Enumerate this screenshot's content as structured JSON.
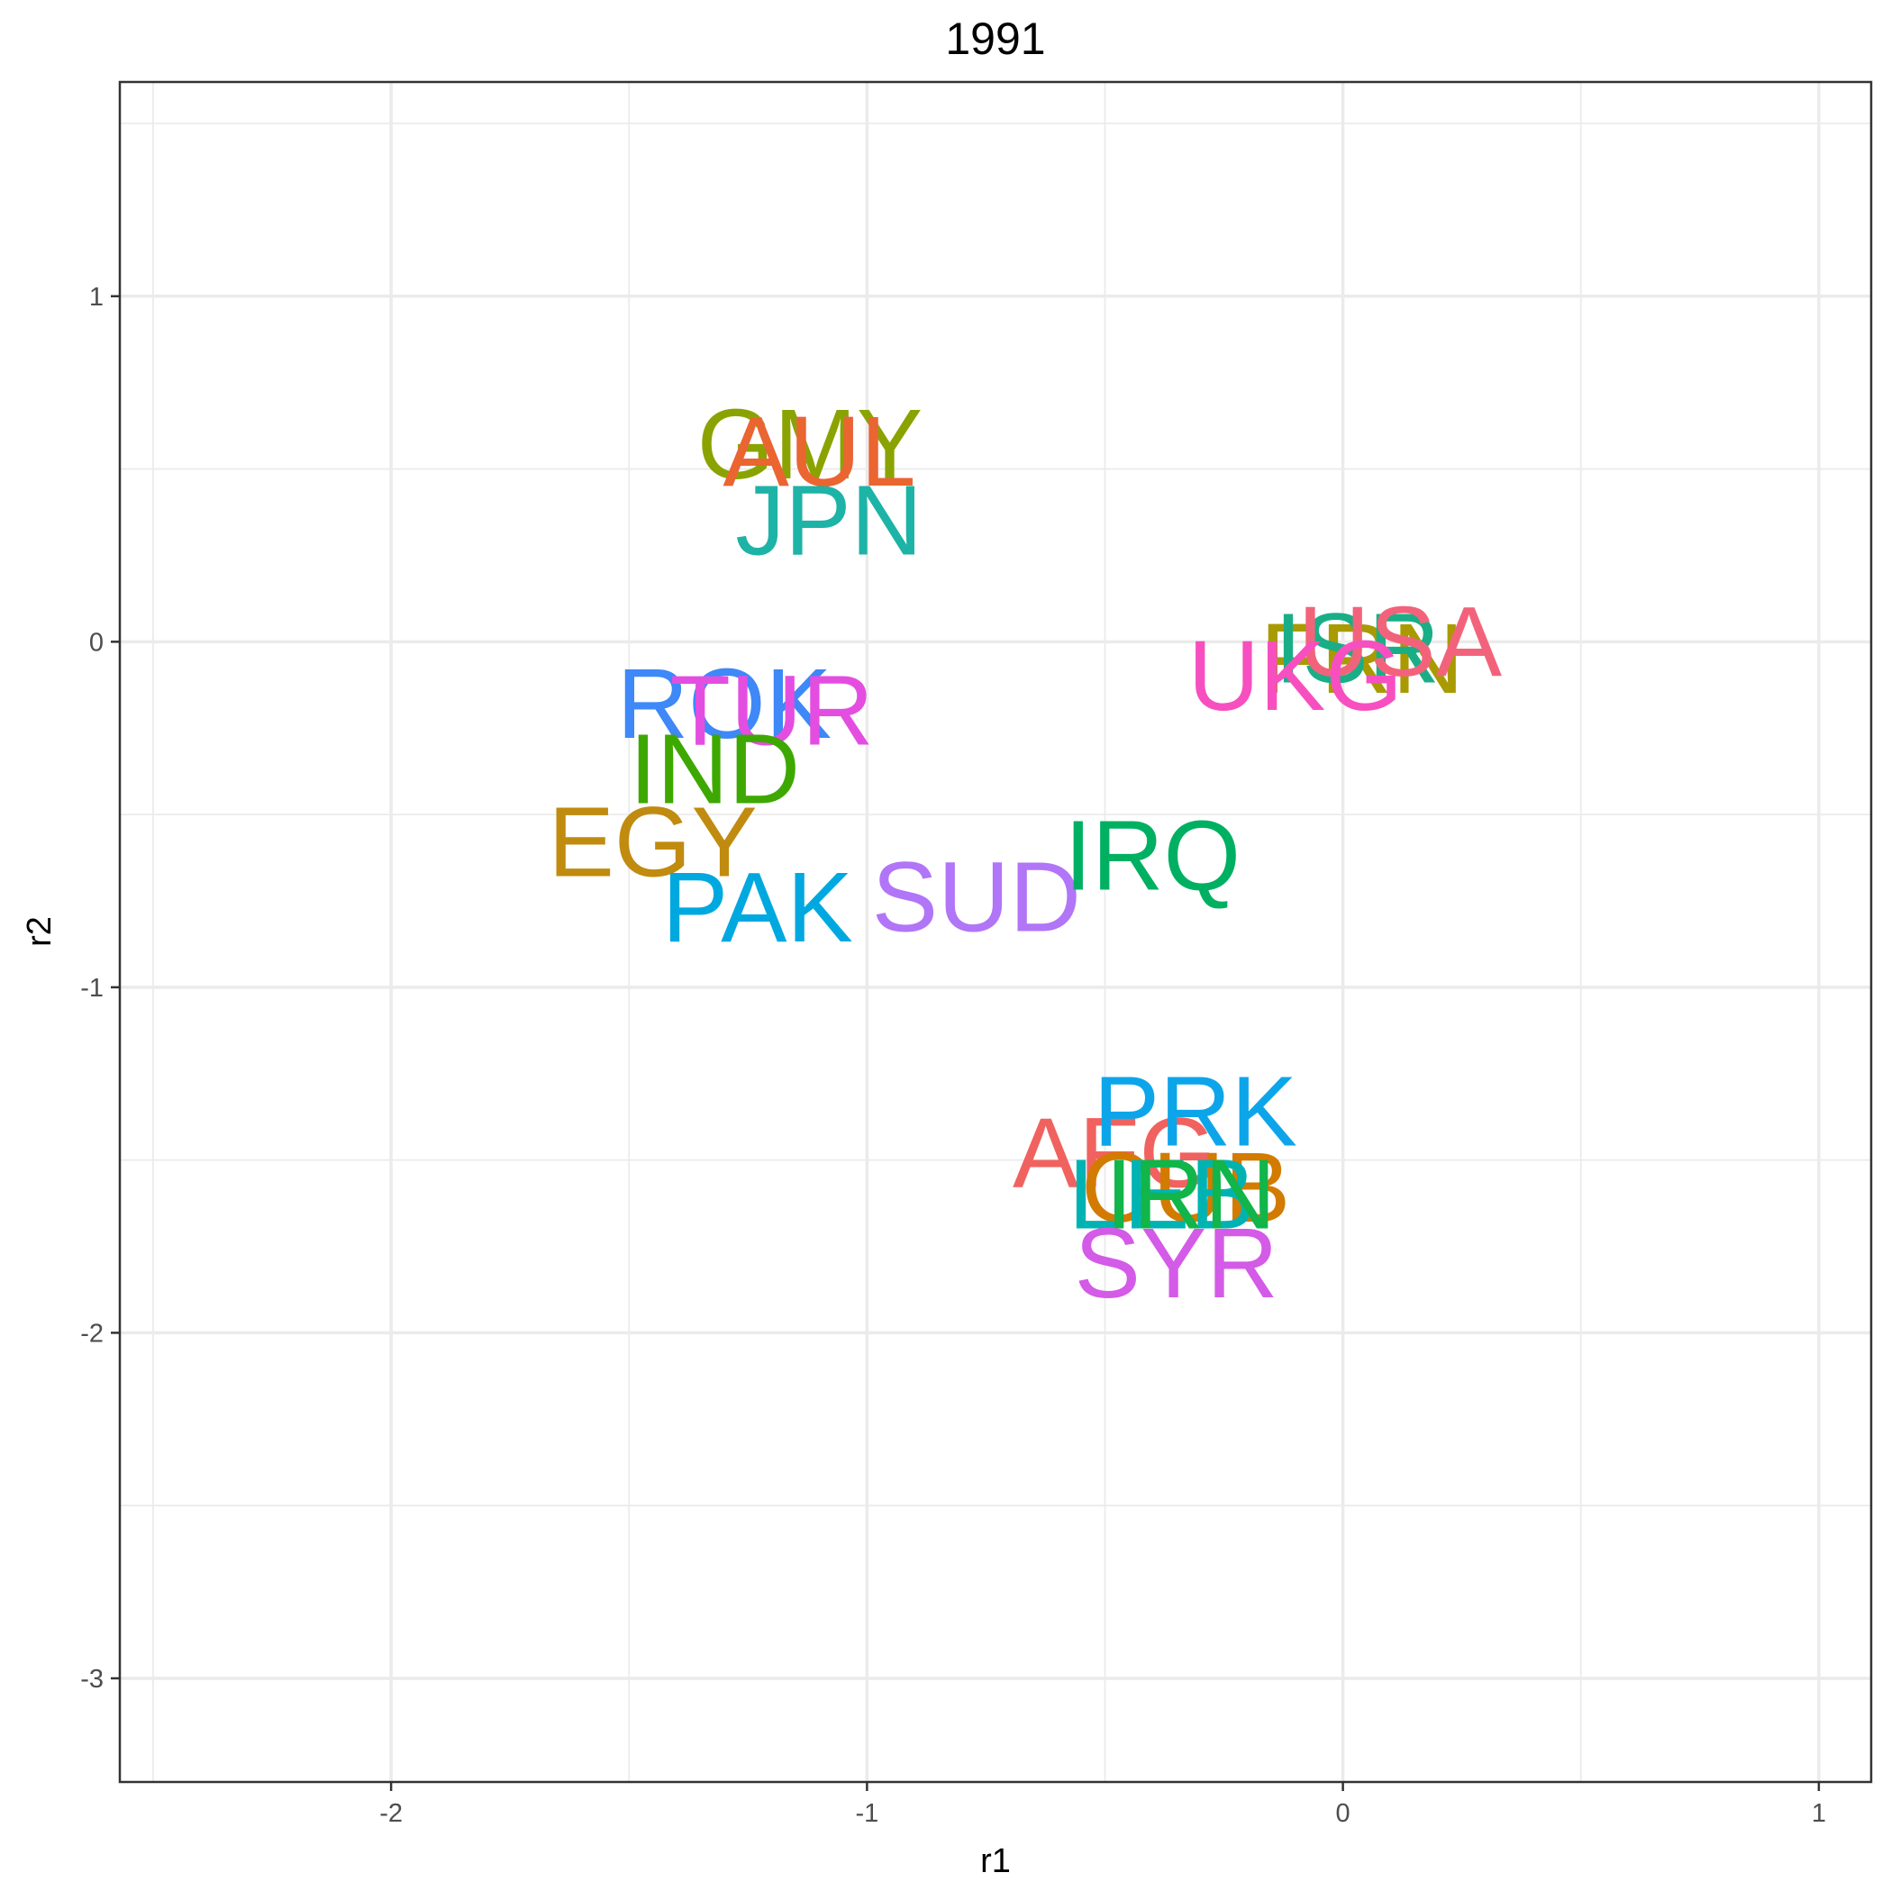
{
  "chart_data": {
    "type": "scatter",
    "title": "1991",
    "xlabel": "r1",
    "ylabel": "r2",
    "xlim": [
      -2.57,
      1.11
    ],
    "ylim": [
      -3.3,
      1.62
    ],
    "xticks": [
      -2,
      -1,
      0,
      1
    ],
    "yticks": [
      1,
      0,
      -1,
      -2,
      -3
    ],
    "xtick_labels": [
      "-2",
      "-1",
      "0",
      "1"
    ],
    "ytick_labels": [
      "1",
      "0",
      "-1",
      "-2",
      "-3"
    ],
    "grid": true,
    "legend": "none",
    "points": [
      {
        "label": "GMY",
        "x": -1.12,
        "y": 0.57,
        "color": "#8BA300"
      },
      {
        "label": "AUL",
        "x": -1.1,
        "y": 0.55,
        "color": "#E76BF3"
      },
      {
        "label": "AUL",
        "x": -1.1,
        "y": 0.55,
        "color": "#EA6530"
      },
      {
        "label": "JPN",
        "x": -1.08,
        "y": 0.35,
        "color": "#1DB3A6"
      },
      {
        "label": "ROK",
        "x": -1.3,
        "y": -0.18,
        "color": "#3E88F8"
      },
      {
        "label": "TUR",
        "x": -1.2,
        "y": -0.2,
        "color": "#E34EE1"
      },
      {
        "label": "IND",
        "x": -1.32,
        "y": -0.37,
        "color": "#3DA800"
      },
      {
        "label": "EGY",
        "x": -1.45,
        "y": -0.58,
        "color": "#C08B0F"
      },
      {
        "label": "PAK",
        "x": -1.23,
        "y": -0.77,
        "color": "#00A8E0"
      },
      {
        "label": "SUD",
        "x": -0.77,
        "y": -0.74,
        "color": "#B175F7"
      },
      {
        "label": "IRQ",
        "x": -0.4,
        "y": -0.62,
        "color": "#00B062"
      },
      {
        "label": "FRN",
        "x": 0.04,
        "y": -0.05,
        "color": "#A89A00"
      },
      {
        "label": "ISR",
        "x": 0.03,
        "y": -0.02,
        "color": "#1AAE87"
      },
      {
        "label": "USA",
        "x": 0.12,
        "y": 0.0,
        "color": "#F2637B"
      },
      {
        "label": "UKG",
        "x": -0.1,
        "y": -0.1,
        "color": "#F74FC0"
      },
      {
        "label": "AFG",
        "x": -0.48,
        "y": -1.48,
        "color": "#F0625F"
      },
      {
        "label": "PRK",
        "x": -0.31,
        "y": -1.36,
        "color": "#0DA5EA"
      },
      {
        "label": "CUB",
        "x": -0.33,
        "y": -1.58,
        "color": "#D27B00"
      },
      {
        "label": "LEB",
        "x": -0.38,
        "y": -1.6,
        "color": "#00B3B3"
      },
      {
        "label": "IRN",
        "x": -0.32,
        "y": -1.6,
        "color": "#11B54A"
      },
      {
        "label": "SYR",
        "x": -0.35,
        "y": -1.8,
        "color": "#D45AE8"
      }
    ]
  }
}
